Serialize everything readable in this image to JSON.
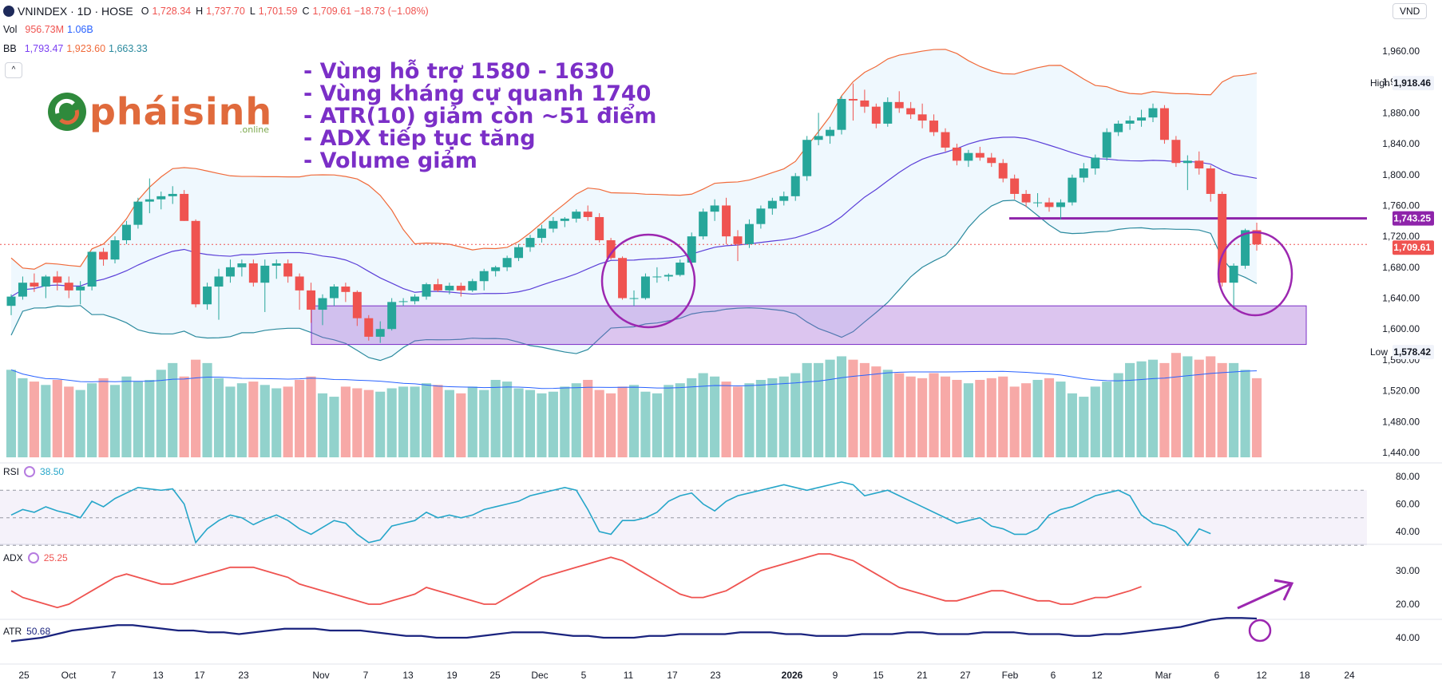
{
  "header": {
    "symbol": "VNINDEX · 1D · HOSE",
    "o_label": "O",
    "o_value": "1,728.34",
    "h_label": "H",
    "h_value": "1,737.70",
    "l_label": "L",
    "l_value": "1,701.59",
    "c_label": "C",
    "c_value": "1,709.61 −18.73 (−1.08%)",
    "vol_label": "Vol",
    "vol_value": "956.73M",
    "vol_ma": "1.06B",
    "bb_label": "BB",
    "bb_basis": "1,793.47",
    "bb_upper": "1,923.60",
    "bb_lower": "1,663.33",
    "currency": "VND"
  },
  "notes": [
    "- Vùng hỗ trợ 1580 - 1630",
    "- Vùng kháng cự quanh 1740",
    "- ATR(10) giảm còn ~51 điểm",
    "- ADX tiếp tục tăng",
    "- Volume giảm"
  ],
  "logo": {
    "text": "phaisinh",
    "display": "pháisinh",
    "sub": ".online"
  },
  "price_axis": {
    "ticks": [
      "1,960.00",
      "1,920.00",
      "1,880.00",
      "1,840.00",
      "1,800.00",
      "1,760.00",
      "1,720.00",
      "1,680.00",
      "1,640.00",
      "1,600.00",
      "1,560.00",
      "1,520.00",
      "1,480.00",
      "1,440.00"
    ],
    "high_label": "High",
    "high_value": "1,918.46",
    "low_label": "Low",
    "low_value": "1,578.42",
    "resistance_value": "1,743.25",
    "last_value": "1,709.61"
  },
  "rsi": {
    "label": "RSI",
    "value": "38.50",
    "ticks": [
      "80.00",
      "60.00",
      "40.00"
    ]
  },
  "adx": {
    "label": "ADX",
    "value": "25.25",
    "ticks": [
      "30.00",
      "20.00"
    ]
  },
  "atr": {
    "label": "ATR",
    "value": "50.68",
    "ticks": [
      "40.00"
    ]
  },
  "x_labels": [
    "25",
    "Oct",
    "7",
    "13",
    "17",
    "23",
    "Nov",
    "7",
    "13",
    "19",
    "25",
    "Dec",
    "5",
    "11",
    "17",
    "23",
    "2026",
    "9",
    "15",
    "21",
    "27",
    "Feb",
    "6",
    "12",
    "Mar",
    "6",
    "12",
    "18",
    "24"
  ],
  "colors": {
    "up": "#26a69a",
    "down": "#ef5350",
    "accent": "#7b2fc7",
    "bb": "#2962ff"
  },
  "chart_data": {
    "type": "candlestick",
    "price_ylim": [
      1440,
      1980
    ],
    "support_zone": [
      1580,
      1630
    ],
    "resistance_level": 1743.25,
    "last_close": 1709.61,
    "series": [
      {
        "name": "VNINDEX",
        "ohlc": [
          [
            1630,
            1645,
            1618,
            1642
          ],
          [
            1642,
            1668,
            1638,
            1660
          ],
          [
            1660,
            1672,
            1648,
            1655
          ],
          [
            1655,
            1670,
            1640,
            1668
          ],
          [
            1668,
            1675,
            1650,
            1660
          ],
          [
            1660,
            1668,
            1640,
            1650
          ],
          [
            1650,
            1662,
            1632,
            1655
          ],
          [
            1655,
            1700,
            1650,
            1700
          ],
          [
            1700,
            1705,
            1682,
            1690
          ],
          [
            1690,
            1720,
            1685,
            1715
          ],
          [
            1715,
            1740,
            1710,
            1735
          ],
          [
            1735,
            1770,
            1730,
            1765
          ],
          [
            1765,
            1795,
            1750,
            1768
          ],
          [
            1768,
            1778,
            1755,
            1772
          ],
          [
            1772,
            1785,
            1762,
            1775
          ],
          [
            1775,
            1780,
            1740,
            1740
          ],
          [
            1740,
            1742,
            1628,
            1632
          ],
          [
            1632,
            1660,
            1625,
            1655
          ],
          [
            1655,
            1678,
            1612,
            1668
          ],
          [
            1668,
            1690,
            1660,
            1680
          ],
          [
            1680,
            1690,
            1668,
            1685
          ],
          [
            1685,
            1690,
            1655,
            1660
          ],
          [
            1660,
            1690,
            1622,
            1682
          ],
          [
            1682,
            1690,
            1665,
            1685
          ],
          [
            1685,
            1690,
            1660,
            1668
          ],
          [
            1668,
            1672,
            1625,
            1650
          ],
          [
            1650,
            1660,
            1608,
            1625
          ],
          [
            1625,
            1645,
            1605,
            1640
          ],
          [
            1640,
            1658,
            1630,
            1655
          ],
          [
            1655,
            1660,
            1635,
            1648
          ],
          [
            1648,
            1650,
            1604,
            1614
          ],
          [
            1614,
            1618,
            1585,
            1590
          ],
          [
            1590,
            1610,
            1582,
            1600
          ],
          [
            1600,
            1640,
            1598,
            1635
          ],
          [
            1635,
            1640,
            1630,
            1636
          ],
          [
            1636,
            1645,
            1632,
            1642
          ],
          [
            1642,
            1660,
            1638,
            1658
          ],
          [
            1658,
            1665,
            1648,
            1650
          ],
          [
            1650,
            1660,
            1645,
            1656
          ],
          [
            1656,
            1660,
            1642,
            1650
          ],
          [
            1650,
            1665,
            1648,
            1662
          ],
          [
            1662,
            1678,
            1650,
            1675
          ],
          [
            1675,
            1682,
            1668,
            1680
          ],
          [
            1680,
            1695,
            1675,
            1692
          ],
          [
            1692,
            1710,
            1688,
            1706
          ],
          [
            1706,
            1722,
            1700,
            1718
          ],
          [
            1718,
            1735,
            1712,
            1730
          ],
          [
            1730,
            1745,
            1725,
            1740
          ],
          [
            1740,
            1745,
            1732,
            1743
          ],
          [
            1743,
            1755,
            1738,
            1752
          ],
          [
            1752,
            1760,
            1740,
            1745
          ],
          [
            1745,
            1750,
            1712,
            1715
          ],
          [
            1715,
            1718,
            1690,
            1692
          ],
          [
            1692,
            1694,
            1638,
            1640
          ],
          [
            1640,
            1650,
            1630,
            1640
          ],
          [
            1640,
            1672,
            1638,
            1668
          ],
          [
            1668,
            1680,
            1660,
            1668
          ],
          [
            1668,
            1672,
            1662,
            1670
          ],
          [
            1670,
            1690,
            1668,
            1686
          ],
          [
            1686,
            1725,
            1684,
            1720
          ],
          [
            1720,
            1756,
            1716,
            1752
          ],
          [
            1752,
            1768,
            1740,
            1760
          ],
          [
            1760,
            1770,
            1710,
            1720
          ],
          [
            1720,
            1728,
            1688,
            1710
          ],
          [
            1710,
            1742,
            1705,
            1736
          ],
          [
            1736,
            1760,
            1730,
            1756
          ],
          [
            1756,
            1770,
            1748,
            1766
          ],
          [
            1766,
            1778,
            1760,
            1772
          ],
          [
            1772,
            1802,
            1766,
            1798
          ],
          [
            1798,
            1850,
            1792,
            1845
          ],
          [
            1845,
            1880,
            1838,
            1850
          ],
          [
            1850,
            1862,
            1840,
            1858
          ],
          [
            1858,
            1902,
            1852,
            1898
          ],
          [
            1898,
            1918,
            1870,
            1896
          ],
          [
            1896,
            1910,
            1880,
            1888
          ],
          [
            1888,
            1892,
            1860,
            1866
          ],
          [
            1866,
            1900,
            1862,
            1894
          ],
          [
            1894,
            1908,
            1880,
            1886
          ],
          [
            1886,
            1894,
            1872,
            1878
          ],
          [
            1878,
            1892,
            1860,
            1870
          ],
          [
            1870,
            1878,
            1850,
            1855
          ],
          [
            1855,
            1860,
            1830,
            1835
          ],
          [
            1835,
            1840,
            1812,
            1818
          ],
          [
            1818,
            1832,
            1810,
            1828
          ],
          [
            1828,
            1836,
            1818,
            1822
          ],
          [
            1822,
            1828,
            1810,
            1815
          ],
          [
            1815,
            1820,
            1790,
            1795
          ],
          [
            1795,
            1800,
            1768,
            1775
          ],
          [
            1775,
            1780,
            1758,
            1764
          ],
          [
            1764,
            1776,
            1758,
            1764
          ],
          [
            1764,
            1770,
            1752,
            1758
          ],
          [
            1758,
            1768,
            1742,
            1764
          ],
          [
            1764,
            1800,
            1760,
            1796
          ],
          [
            1796,
            1815,
            1790,
            1808
          ],
          [
            1808,
            1826,
            1800,
            1822
          ],
          [
            1822,
            1860,
            1818,
            1855
          ],
          [
            1855,
            1870,
            1850,
            1866
          ],
          [
            1866,
            1876,
            1858,
            1870
          ],
          [
            1870,
            1884,
            1862,
            1874
          ],
          [
            1874,
            1892,
            1868,
            1886
          ],
          [
            1886,
            1890,
            1840,
            1845
          ],
          [
            1845,
            1850,
            1810,
            1815
          ],
          [
            1815,
            1825,
            1780,
            1818
          ],
          [
            1818,
            1830,
            1800,
            1808
          ],
          [
            1808,
            1812,
            1765,
            1775
          ],
          [
            1775,
            1778,
            1655,
            1660
          ],
          [
            1660,
            1685,
            1625,
            1682
          ],
          [
            1682,
            1730,
            1678,
            1728
          ],
          [
            1728,
            1737.7,
            1701.59,
            1709.61
          ]
        ]
      },
      {
        "name": "Volume",
        "values": [
          520,
          470,
          450,
          430,
          460,
          420,
          400,
          440,
          470,
          430,
          480,
          450,
          460,
          520,
          560,
          480,
          580,
          560,
          470,
          420,
          440,
          450,
          430,
          410,
          420,
          460,
          480,
          380,
          360,
          420,
          410,
          400,
          390,
          410,
          420,
          420,
          440,
          430,
          400,
          380,
          420,
          400,
          460,
          450,
          410,
          400,
          380,
          390,
          420,
          440,
          460,
          400,
          380,
          420,
          430,
          390,
          380,
          430,
          440,
          470,
          500,
          480,
          450,
          420,
          440,
          460,
          470,
          480,
          500,
          560,
          560,
          580,
          600,
          580,
          560,
          540,
          520,
          500,
          480,
          470,
          500,
          480,
          460,
          440,
          460,
          470,
          480,
          420,
          440,
          460,
          470,
          450,
          380,
          360,
          420,
          450,
          500,
          560,
          570,
          580,
          560,
          620,
          600,
          580,
          600,
          560,
          560,
          520,
          470
        ]
      }
    ],
    "rsi": [
      52,
      56,
      54,
      58,
      55,
      53,
      50,
      62,
      58,
      64,
      68,
      72,
      71,
      70,
      71,
      60,
      32,
      42,
      48,
      52,
      50,
      45,
      49,
      52,
      48,
      42,
      38,
      43,
      48,
      46,
      38,
      32,
      34,
      44,
      46,
      48,
      54,
      50,
      52,
      50,
      52,
      56,
      58,
      60,
      62,
      66,
      68,
      70,
      72,
      70,
      56,
      40,
      38,
      48,
      48,
      50,
      54,
      62,
      66,
      68,
      60,
      55,
      62,
      66,
      68,
      70,
      72,
      74,
      72,
      70,
      72,
      74,
      76,
      74,
      66,
      68,
      70,
      66,
      62,
      58,
      54,
      50,
      46,
      48,
      50,
      44,
      42,
      38,
      38,
      42,
      52,
      56,
      58,
      62,
      66,
      68,
      70,
      66,
      52,
      46,
      44,
      40,
      30,
      42,
      38.5
    ],
    "adx": [
      24,
      22,
      21,
      20,
      19,
      20,
      22,
      24,
      26,
      28,
      29,
      28,
      27,
      26,
      26,
      27,
      28,
      29,
      30,
      31,
      31,
      31,
      30,
      29,
      28,
      26,
      25,
      24,
      23,
      22,
      21,
      20,
      20,
      21,
      22,
      23,
      25,
      24,
      23,
      22,
      21,
      20,
      20,
      22,
      24,
      26,
      28,
      29,
      30,
      31,
      32,
      33,
      34,
      33,
      31,
      29,
      27,
      25,
      23,
      22,
      22,
      23,
      24,
      26,
      28,
      30,
      31,
      32,
      33,
      34,
      35,
      35,
      34,
      33,
      31,
      29,
      27,
      25,
      24,
      23,
      22,
      21,
      21,
      22,
      23,
      24,
      24,
      23,
      22,
      21,
      21,
      20,
      20,
      21,
      22,
      22,
      23,
      24,
      25.25
    ],
    "atr": [
      38,
      39,
      40,
      42,
      44,
      45,
      46,
      47,
      47,
      46,
      45,
      44,
      44,
      43,
      43,
      42,
      43,
      44,
      45,
      45,
      45,
      44,
      44,
      44,
      43,
      42,
      41,
      41,
      40,
      40,
      40,
      41,
      42,
      43,
      43,
      43,
      42,
      41,
      41,
      40,
      40,
      40,
      41,
      41,
      42,
      42,
      42,
      42,
      43,
      43,
      43,
      42,
      42,
      41,
      41,
      41,
      42,
      42,
      42,
      43,
      43,
      42,
      42,
      42,
      43,
      43,
      43,
      42,
      42,
      42,
      41,
      41,
      42,
      42,
      43,
      44,
      45,
      46,
      48,
      50,
      51,
      51,
      50.68
    ]
  }
}
